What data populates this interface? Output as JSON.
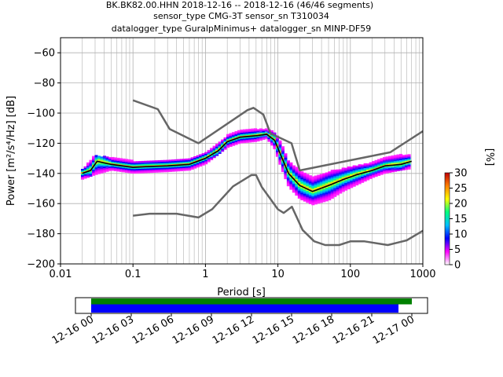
{
  "chart_data": [
    {
      "type": "heatmap",
      "title_lines": [
        "BK.BK82.00.HHN   2018-12-16 -- 2018-12-16  (46/46 segments)",
        "sensor_type CMG-3T sensor_sn T310034",
        "datalogger_type GuralpMinimus+ datalogger_sn MINP-DF59"
      ],
      "xlabel": "Period [s]",
      "ylabel": "Power [m²/s⁴/Hz] [dB]",
      "x_scale": "log",
      "xlim": [
        0.01,
        1000
      ],
      "ylim": [
        -200,
        -50
      ],
      "x_ticks": [
        {
          "value": 0.01,
          "label": "0.01"
        },
        {
          "value": 0.1,
          "label": "0.1"
        },
        {
          "value": 1,
          "label": "1"
        },
        {
          "value": 10,
          "label": "10"
        },
        {
          "value": 100,
          "label": "100"
        },
        {
          "value": 1000,
          "label": "1000"
        }
      ],
      "y_ticks": [
        -60,
        -80,
        -100,
        -120,
        -140,
        -160,
        -180,
        -200
      ],
      "grid": true,
      "colorbar": {
        "label": "[%]",
        "min": 0,
        "max": 30,
        "ticks": [
          0,
          5,
          10,
          15,
          20,
          25,
          30
        ],
        "colors": [
          "#ffffff",
          "#ff00ff",
          "#0000ff",
          "#00c0ff",
          "#00ff80",
          "#ffff00",
          "#ff8000",
          "#c00000"
        ]
      },
      "series": [
        {
          "role": "noise-model-high",
          "color": "#666666",
          "points": [
            [
              0.1,
              -91.5
            ],
            [
              0.22,
              -97.4
            ],
            [
              0.32,
              -110.5
            ],
            [
              0.8,
              -120
            ],
            [
              3.8,
              -98
            ],
            [
              4.6,
              -96.5
            ],
            [
              6.3,
              -101
            ],
            [
              7.9,
              -113.5
            ],
            [
              15.4,
              -120
            ],
            [
              20,
              -138
            ],
            [
              354.8,
              -126
            ],
            [
              1000,
              -112
            ]
          ]
        },
        {
          "role": "noise-model-low",
          "color": "#666666",
          "points": [
            [
              0.1,
              -168
            ],
            [
              0.17,
              -166.7
            ],
            [
              0.4,
              -166.7
            ],
            [
              0.8,
              -169.2
            ],
            [
              1.24,
              -163.7
            ],
            [
              2.4,
              -148.6
            ],
            [
              4.3,
              -141.1
            ],
            [
              5,
              -141.1
            ],
            [
              6,
              -149
            ],
            [
              10,
              -163.8
            ],
            [
              12,
              -166.2
            ],
            [
              15.6,
              -162.1
            ],
            [
              21.9,
              -177.5
            ],
            [
              31.6,
              -185
            ],
            [
              45,
              -187.5
            ],
            [
              70,
              -187.5
            ],
            [
              101,
              -185
            ],
            [
              154,
              -185
            ],
            [
              328,
              -187.5
            ],
            [
              600,
              -184.4
            ],
            [
              1000,
              -178
            ]
          ]
        },
        {
          "role": "median",
          "color": "#000000",
          "points": [
            [
              0.02,
              -140
            ],
            [
              0.026,
              -138
            ],
            [
              0.032,
              -132
            ],
            [
              0.05,
              -134
            ],
            [
              0.1,
              -136
            ],
            [
              0.15,
              -135.5
            ],
            [
              0.3,
              -135
            ],
            [
              0.6,
              -134
            ],
            [
              1.0,
              -130
            ],
            [
              1.5,
              -125
            ],
            [
              2.0,
              -119
            ],
            [
              3.0,
              -116
            ],
            [
              5.0,
              -115
            ],
            [
              7.0,
              -114
            ],
            [
              9.0,
              -118
            ],
            [
              11.0,
              -128
            ],
            [
              14.0,
              -140
            ],
            [
              20.0,
              -148
            ],
            [
              30.0,
              -152
            ],
            [
              50.0,
              -148
            ],
            [
              80.0,
              -144
            ],
            [
              120.0,
              -141
            ],
            [
              200.0,
              -138
            ],
            [
              300.0,
              -135
            ],
            [
              500.0,
              -134
            ],
            [
              700.0,
              -132
            ]
          ]
        },
        {
          "role": "density-cloud",
          "color": "#00c0ff",
          "lower": [
            [
              0.02,
              -144
            ],
            [
              0.03,
              -141
            ],
            [
              0.05,
              -138
            ],
            [
              0.1,
              -140
            ],
            [
              0.3,
              -139
            ],
            [
              0.6,
              -138
            ],
            [
              1.0,
              -134
            ],
            [
              2.0,
              -123
            ],
            [
              3.0,
              -120
            ],
            [
              5.0,
              -119
            ],
            [
              7.0,
              -117
            ],
            [
              9.0,
              -124
            ],
            [
              11.0,
              -136
            ],
            [
              14.0,
              -149
            ],
            [
              20.0,
              -157
            ],
            [
              30.0,
              -161
            ],
            [
              50.0,
              -158
            ],
            [
              80.0,
              -152
            ],
            [
              120.0,
              -148
            ],
            [
              200.0,
              -143
            ],
            [
              300.0,
              -140
            ],
            [
              500.0,
              -138
            ],
            [
              700.0,
              -137
            ]
          ],
          "upper": [
            [
              0.02,
              -138
            ],
            [
              0.03,
              -128
            ],
            [
              0.05,
              -130
            ],
            [
              0.1,
              -132
            ],
            [
              0.3,
              -132
            ],
            [
              0.6,
              -131
            ],
            [
              1.0,
              -127
            ],
            [
              2.0,
              -115
            ],
            [
              3.0,
              -112
            ],
            [
              5.0,
              -111
            ],
            [
              7.0,
              -111
            ],
            [
              9.0,
              -113
            ],
            [
              11.0,
              -120
            ],
            [
              14.0,
              -132
            ],
            [
              20.0,
              -138
            ],
            [
              30.0,
              -143
            ],
            [
              50.0,
              -139
            ],
            [
              80.0,
              -137
            ],
            [
              120.0,
              -135
            ],
            [
              200.0,
              -133
            ],
            [
              300.0,
              -130
            ],
            [
              500.0,
              -128
            ],
            [
              700.0,
              -128
            ]
          ]
        }
      ]
    },
    {
      "type": "bar",
      "orientation": "horizontal",
      "x_ticks": [
        "12-16 00",
        "12-16 03",
        "12-16 06",
        "12-16 09",
        "12-16 12",
        "12-16 15",
        "12-16 18",
        "12-16 21",
        "12-17 00"
      ],
      "bars": [
        {
          "role": "data-coverage",
          "color": "#008000",
          "start": "12-16 00:00",
          "end": "12-17 00:00"
        },
        {
          "role": "psd-segments",
          "color": "#0000ff",
          "start": "12-16 00:00",
          "end": "12-16 23:00"
        }
      ]
    }
  ]
}
